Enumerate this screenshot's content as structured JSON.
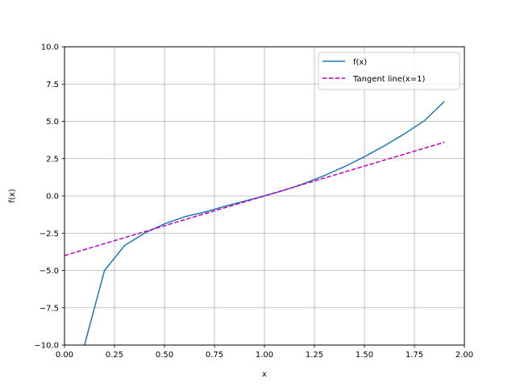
{
  "chart_data": {
    "type": "line",
    "xlabel": "x",
    "ylabel": "f(x)",
    "xlim": [
      0.0,
      2.0
    ],
    "ylim": [
      -10.0,
      10.0
    ],
    "xticks": [
      0.0,
      0.25,
      0.5,
      0.75,
      1.0,
      1.25,
      1.5,
      1.75,
      2.0
    ],
    "xtick_labels": [
      "0.00",
      "0.25",
      "0.50",
      "0.75",
      "1.00",
      "1.25",
      "1.50",
      "1.75",
      "2.00"
    ],
    "yticks": [
      -10.0,
      -7.5,
      -5.0,
      -2.5,
      0.0,
      2.5,
      5.0,
      7.5,
      10.0
    ],
    "ytick_labels": [
      "−10.0",
      "−7.5",
      "−5.0",
      "−2.5",
      "0.0",
      "2.5",
      "5.0",
      "7.5",
      "10.0"
    ],
    "grid": true,
    "legend_position": "top-right",
    "series": [
      {
        "name": "f(x)",
        "style": "solid",
        "color": "#1f77b4",
        "x": [
          0.1,
          0.2,
          0.3,
          0.4,
          0.5,
          0.6,
          0.7,
          0.8,
          0.9,
          1.0,
          1.1,
          1.2,
          1.3,
          1.4,
          1.5,
          1.6,
          1.7,
          1.8,
          1.9
        ],
        "y": [
          -10.0,
          -5.0,
          -3.333,
          -2.5,
          -1.875,
          -1.4,
          -1.09,
          -0.7,
          -0.351,
          0.0,
          0.381,
          0.84,
          1.365,
          1.96,
          2.625,
          3.36,
          4.165,
          5.04,
          6.339
        ]
      },
      {
        "name": "Tangent line(x=1)",
        "style": "dashed",
        "color": "#bf00bf",
        "x": [
          0.0,
          1.9
        ],
        "y": [
          -4.0,
          3.6
        ]
      }
    ]
  }
}
